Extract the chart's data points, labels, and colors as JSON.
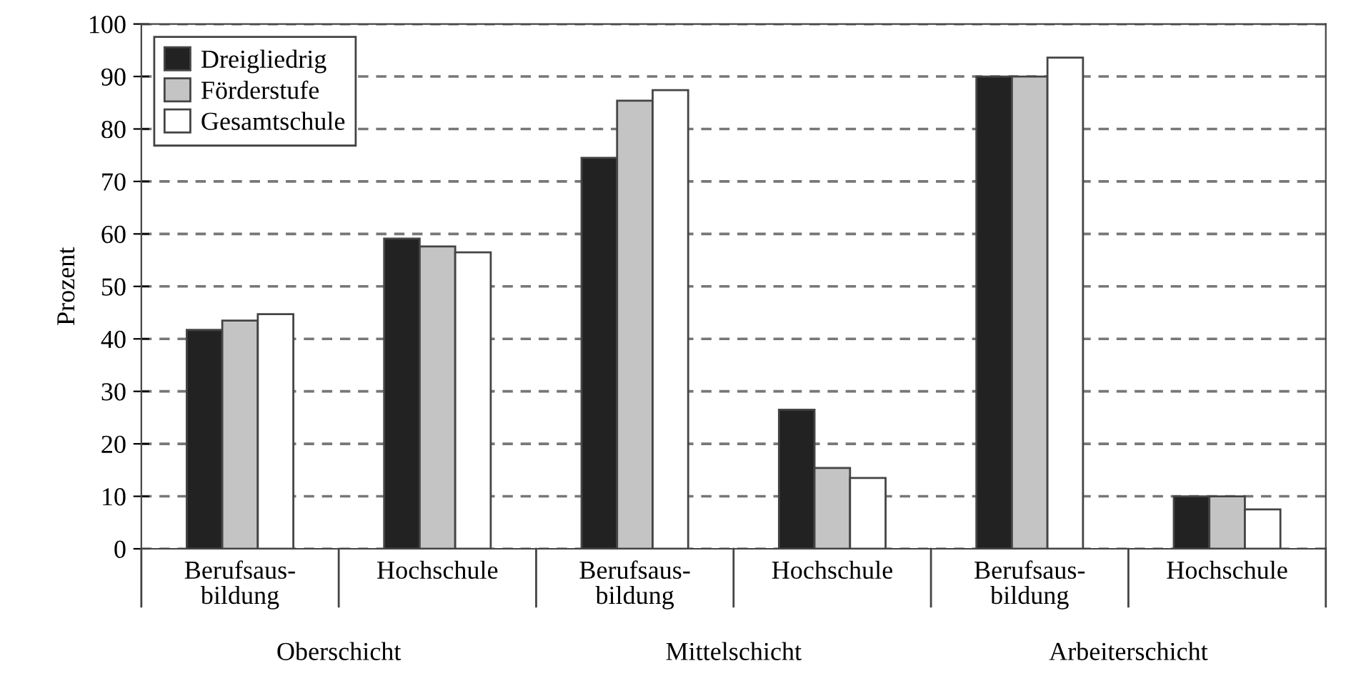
{
  "chart_data": {
    "type": "bar",
    "ylabel": "Prozent",
    "categories": [
      "Berufsaus-\nbildung",
      "Hochschule",
      "Berufsaus-\nbildung",
      "Hochschule",
      "Berufsaus-\nbildung",
      "Hochschule"
    ],
    "series": [
      {
        "name": "Dreigliedrig",
        "color": "#222222",
        "values": [
          41.7,
          59.1,
          74.5,
          26.5,
          90,
          10
        ]
      },
      {
        "name": "Förderstufe",
        "color": "#c4c4c4",
        "values": [
          43.5,
          57.6,
          85.4,
          15.4,
          90,
          10
        ]
      },
      {
        "name": "Gesamtschule",
        "color": "#ffffff",
        "values": [
          44.7,
          56.5,
          87.4,
          13.5,
          93.6,
          7.5
        ]
      }
    ],
    "annotations": [
      "Oberschicht",
      "Mittelschicht",
      "Arbeiterschicht"
    ],
    "ylim": [
      0,
      100
    ],
    "yticks": [
      0,
      10,
      20,
      30,
      40,
      50,
      60,
      70,
      80,
      90,
      100
    ],
    "grid": "y",
    "legend": "top left"
  }
}
